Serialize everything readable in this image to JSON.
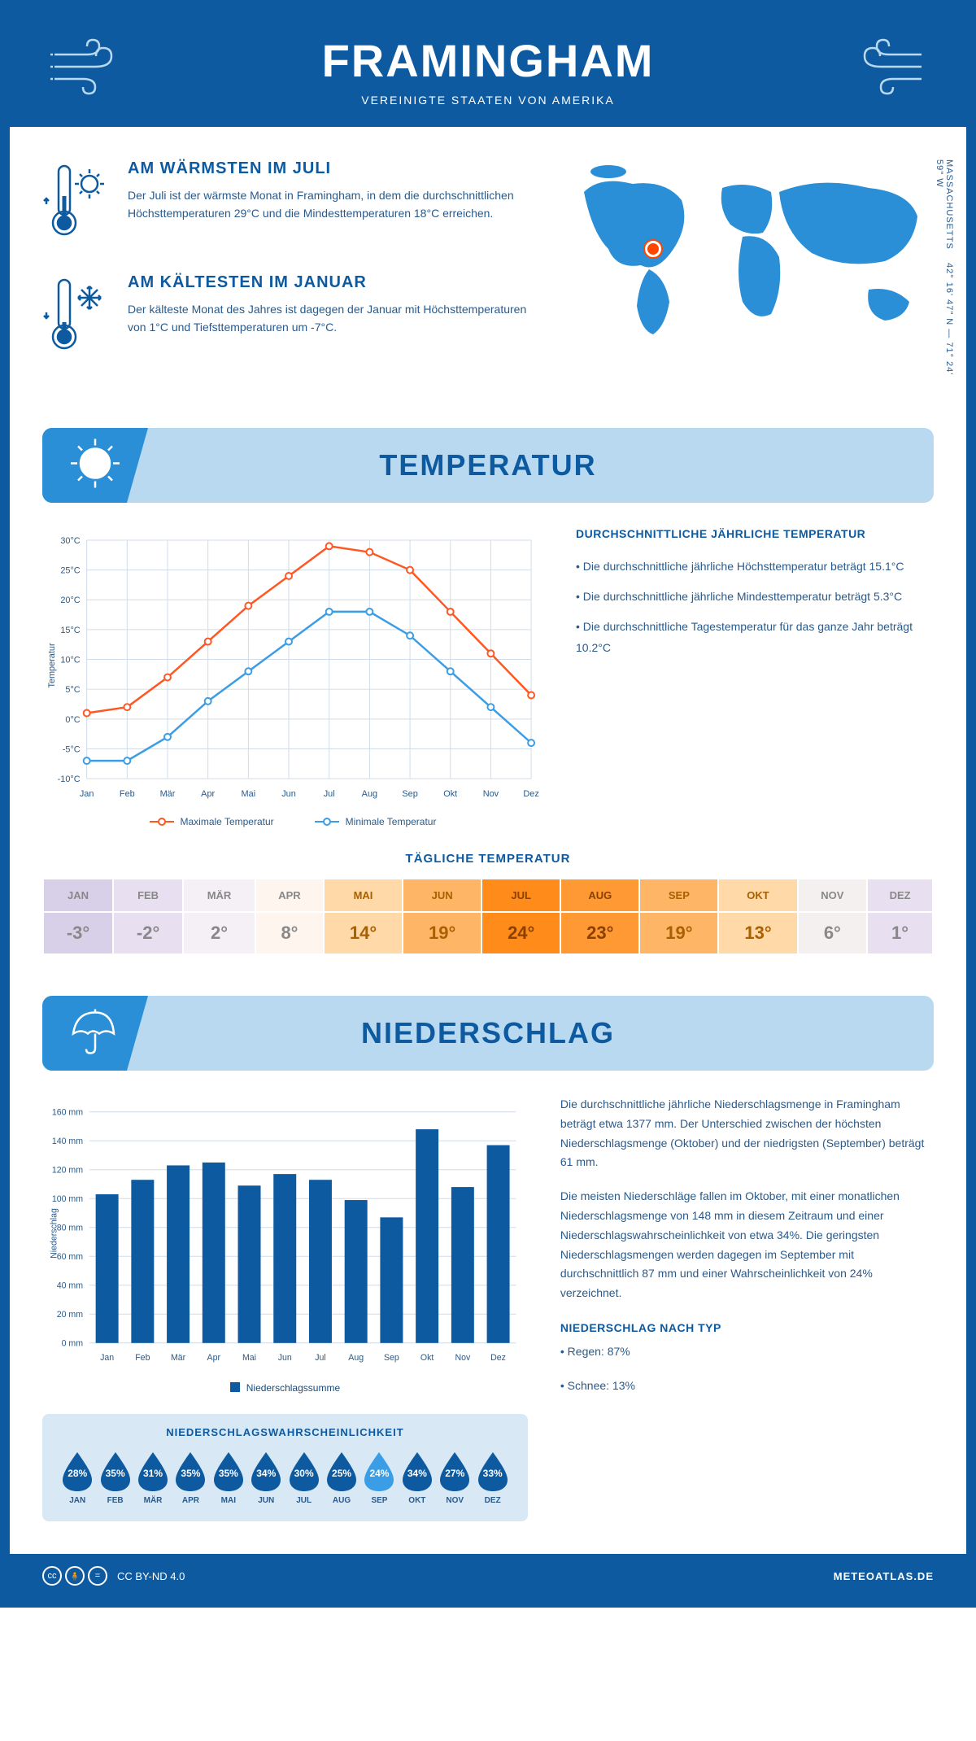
{
  "header": {
    "title": "FRAMINGHAM",
    "subtitle": "VEREINIGTE STAATEN VON AMERIKA"
  },
  "coords": {
    "text": "42° 16' 47\" N — 71° 24' 59\" W",
    "region": "MASSACHUSETTS"
  },
  "facts": {
    "warm": {
      "title": "AM WÄRMSTEN IM JULI",
      "body": "Der Juli ist der wärmste Monat in Framingham, in dem die durchschnittlichen Höchsttemperaturen 29°C und die Mindesttemperaturen 18°C erreichen."
    },
    "cold": {
      "title": "AM KÄLTESTEN IM JANUAR",
      "body": "Der kälteste Monat des Jahres ist dagegen der Januar mit Höchsttemperaturen von 1°C und Tiefsttemperaturen um -7°C."
    }
  },
  "sections": {
    "temp_title": "TEMPERATUR",
    "precip_title": "NIEDERSCHLAG"
  },
  "temp_chart": {
    "type": "line",
    "months": [
      "Jan",
      "Feb",
      "Mär",
      "Apr",
      "Mai",
      "Jun",
      "Jul",
      "Aug",
      "Sep",
      "Okt",
      "Nov",
      "Dez"
    ],
    "max_values": [
      1,
      2,
      7,
      13,
      19,
      24,
      29,
      28,
      25,
      18,
      11,
      4
    ],
    "min_values": [
      -7,
      -7,
      -3,
      3,
      8,
      13,
      18,
      18,
      14,
      8,
      2,
      -4
    ],
    "ylim": [
      -10,
      30
    ],
    "ytick_step": 5,
    "ylabel": "Temperatur",
    "max_color": "#ff5722",
    "min_color": "#3a9de6",
    "grid_color": "#d0dce8",
    "max_label": "Maximale Temperatur",
    "min_label": "Minimale Temperatur"
  },
  "temp_stats": {
    "heading": "DURCHSCHNITTLICHE JÄHRLICHE TEMPERATUR",
    "p1": "• Die durchschnittliche jährliche Höchsttemperatur beträgt 15.1°C",
    "p2": "• Die durchschnittliche jährliche Mindesttemperatur beträgt 5.3°C",
    "p3": "• Die durchschnittliche Tagestemperatur für das ganze Jahr beträgt 10.2°C"
  },
  "daily_temp": {
    "title": "TÄGLICHE TEMPERATUR",
    "months": [
      "JAN",
      "FEB",
      "MÄR",
      "APR",
      "MAI",
      "JUN",
      "JUL",
      "AUG",
      "SEP",
      "OKT",
      "NOV",
      "DEZ"
    ],
    "values": [
      "-3°",
      "-2°",
      "2°",
      "8°",
      "14°",
      "19°",
      "24°",
      "23°",
      "19°",
      "13°",
      "6°",
      "1°"
    ],
    "bg_colors": [
      "#d8d0e8",
      "#e8e0f0",
      "#f5f0f5",
      "#fdf5ee",
      "#ffd9a8",
      "#ffb566",
      "#ff8c1a",
      "#ff9933",
      "#ffb566",
      "#ffd9a8",
      "#f5f0f0",
      "#e8e0f0"
    ],
    "fg_colors": [
      "#888",
      "#888",
      "#888",
      "#888",
      "#a86000",
      "#a86000",
      "#8a4000",
      "#8a4000",
      "#a86000",
      "#a86000",
      "#888",
      "#888"
    ]
  },
  "precip_chart": {
    "type": "bar",
    "months": [
      "Jan",
      "Feb",
      "Mär",
      "Apr",
      "Mai",
      "Jun",
      "Jul",
      "Aug",
      "Sep",
      "Okt",
      "Nov",
      "Dez"
    ],
    "values": [
      103,
      113,
      123,
      125,
      109,
      117,
      113,
      99,
      87,
      148,
      108,
      137
    ],
    "ylim": [
      0,
      160
    ],
    "ytick_step": 20,
    "ylabel": "Niederschlag",
    "bar_color": "#0e5aa0",
    "grid_color": "#d0dce8",
    "legend_label": "Niederschlagssumme"
  },
  "precip_text": {
    "p1": "Die durchschnittliche jährliche Niederschlagsmenge in Framingham beträgt etwa 1377 mm. Der Unterschied zwischen der höchsten Niederschlagsmenge (Oktober) und der niedrigsten (September) beträgt 61 mm.",
    "p2": "Die meisten Niederschläge fallen im Oktober, mit einer monatlichen Niederschlagsmenge von 148 mm in diesem Zeitraum und einer Niederschlagswahrscheinlichkeit von etwa 34%. Die geringsten Niederschlagsmengen werden dagegen im September mit durchschnittlich 87 mm und einer Wahrscheinlichkeit von 24% verzeichnet.",
    "type_heading": "NIEDERSCHLAG NACH TYP",
    "type_p1": "• Regen: 87%",
    "type_p2": "• Schnee: 13%"
  },
  "prob": {
    "title": "NIEDERSCHLAGSWAHRSCHEINLICHKEIT",
    "months": [
      "JAN",
      "FEB",
      "MÄR",
      "APR",
      "MAI",
      "JUN",
      "JUL",
      "AUG",
      "SEP",
      "OKT",
      "NOV",
      "DEZ"
    ],
    "values": [
      "28%",
      "35%",
      "31%",
      "35%",
      "35%",
      "34%",
      "30%",
      "25%",
      "24%",
      "34%",
      "27%",
      "33%"
    ],
    "drop_color_dark": "#0e5aa0",
    "drop_color_light": "#3a9de6",
    "light_index": 8
  },
  "footer": {
    "license": "CC BY-ND 4.0",
    "site": "METEOATLAS.DE"
  },
  "colors": {
    "primary": "#0e5aa0",
    "light_blue": "#b8d9f0",
    "mid_blue": "#2a8fd6"
  }
}
